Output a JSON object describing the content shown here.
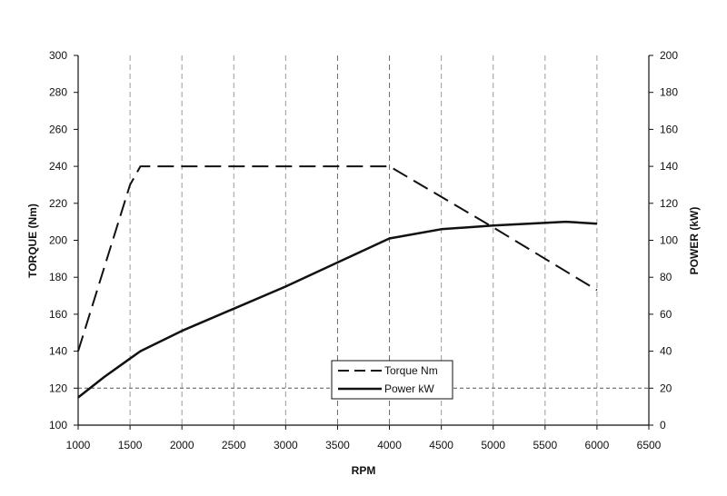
{
  "chart_data": {
    "type": "line",
    "xlabel": "RPM",
    "ylabel_left": "TORQUE (Nm)",
    "ylabel_right": "POWER (kW)",
    "xlim": [
      1000,
      6500
    ],
    "ylim_left": [
      100,
      300
    ],
    "ylim_right": [
      0,
      200
    ],
    "x_ticks": [
      1000,
      1500,
      2000,
      2500,
      3000,
      3500,
      4000,
      4500,
      5000,
      5500,
      6000,
      6500
    ],
    "y_left_ticks": [
      100,
      120,
      140,
      160,
      180,
      200,
      220,
      240,
      260,
      280,
      300
    ],
    "y_right_ticks": [
      0,
      20,
      40,
      60,
      80,
      100,
      120,
      140,
      160,
      180,
      200
    ],
    "grid": true,
    "legend_position": "bottom-center",
    "series": [
      {
        "name": "Torque Nm",
        "axis": "left",
        "style": "dashed",
        "x": [
          1000,
          1500,
          1600,
          4000,
          5000,
          6000
        ],
        "values": [
          140,
          230,
          240,
          240,
          207,
          173
        ]
      },
      {
        "name": "Power kW",
        "axis": "right",
        "style": "solid",
        "x": [
          1000,
          1250,
          1500,
          1600,
          2000,
          2500,
          3000,
          3500,
          4000,
          4500,
          5000,
          5700,
          6000
        ],
        "values": [
          15,
          26,
          36,
          40,
          51,
          63,
          75,
          88,
          101,
          106,
          108,
          110,
          109
        ]
      }
    ]
  }
}
